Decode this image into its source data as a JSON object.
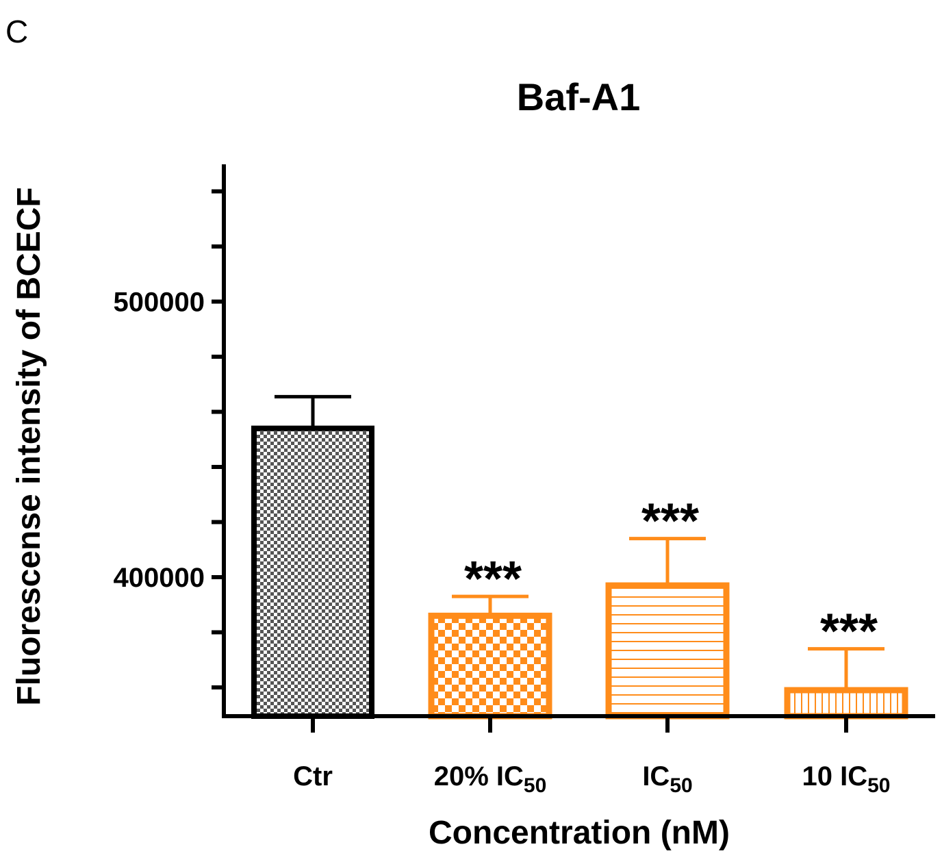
{
  "panel_label": "C",
  "chart_data": {
    "type": "bar",
    "title": "Baf-A1",
    "xlabel": "Concentration (nM)",
    "ylabel": "Fluorescense intensity of BCECF",
    "ylim": [
      350000,
      550000
    ],
    "y_major_ticks": [
      400000,
      500000
    ],
    "y_tick_labels": [
      "400000",
      "500000"
    ],
    "y_minor_step": 20000,
    "categories": [
      {
        "label": "Ctr",
        "sub": ""
      },
      {
        "label": "20% IC",
        "sub": "50"
      },
      {
        "label": "IC",
        "sub": "50"
      },
      {
        "label": "10 IC",
        "sub": "50"
      }
    ],
    "values": [
      454000,
      386000,
      397000,
      359000
    ],
    "errors": [
      11500,
      7000,
      17000,
      15000
    ],
    "significance": [
      "",
      "***",
      "***",
      "***"
    ],
    "colors": {
      "ctr_edge": "#000000",
      "ctr_fill": "#8a8a8a",
      "treated": "#ff8c1a"
    },
    "patterns": [
      "fine-checker",
      "checker",
      "horizontal-lines",
      "vertical-lines"
    ]
  }
}
